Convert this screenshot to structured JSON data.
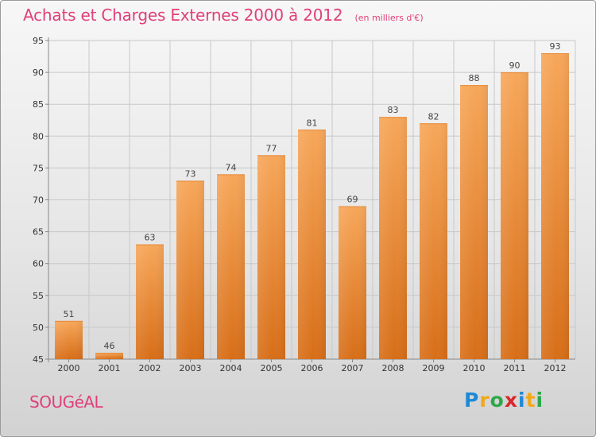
{
  "title": "Achats et Charges Externes 2000 à 2012",
  "subtitle": "(en milliers d'€)",
  "commune": "SOUGéAL",
  "logo": {
    "text": "Proxiti",
    "letters": [
      "P",
      "r",
      "o",
      "x",
      "i",
      "t",
      "i"
    ],
    "colors": [
      "#1e8ad6",
      "#f0a81e",
      "#2da84a",
      "#d8282a",
      "#1e8ad6",
      "#f0a81e",
      "#2da84a"
    ]
  },
  "colors": {
    "title": "#e0407a",
    "bar_top": "#f7a75a",
    "bar_bottom": "#d76e18",
    "grid": "#c8c8c8"
  },
  "chart_data": {
    "type": "bar",
    "categories": [
      "2000",
      "2001",
      "2002",
      "2003",
      "2004",
      "2005",
      "2006",
      "2007",
      "2008",
      "2009",
      "2010",
      "2011",
      "2012"
    ],
    "values": [
      51,
      46,
      63,
      73,
      74,
      77,
      81,
      69,
      83,
      82,
      88,
      90,
      93
    ],
    "yticks": [
      45,
      50,
      55,
      60,
      65,
      70,
      75,
      80,
      85,
      90,
      95
    ],
    "ylim": [
      45,
      95
    ],
    "grid": true,
    "title": "Achats et Charges Externes 2000 à 2012",
    "xlabel": "",
    "ylabel": ""
  }
}
